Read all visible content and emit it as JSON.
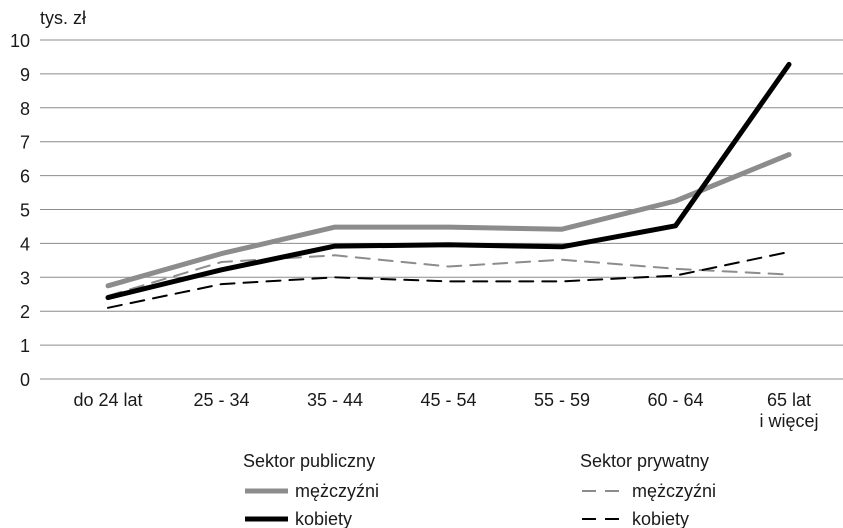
{
  "chart_data": {
    "type": "line",
    "title": "",
    "ylabel": "tys. zł",
    "xlabel": "",
    "ylim": [
      0,
      10
    ],
    "yticks": [
      0,
      1,
      2,
      3,
      4,
      5,
      6,
      7,
      8,
      9,
      10
    ],
    "grid": true,
    "categories": [
      "do 24 lat",
      "25 - 34",
      "35 - 44",
      "45 - 54",
      "55 - 59",
      "60 - 64",
      "65 lat i więcej"
    ],
    "category_lines": [
      [
        "do 24 lat"
      ],
      [
        "25 - 34"
      ],
      [
        "35 - 44"
      ],
      [
        "45 - 54"
      ],
      [
        "55 - 59"
      ],
      [
        "60 - 64"
      ],
      [
        "65 lat",
        "i więcej"
      ]
    ],
    "legend": {
      "placement": "bottom",
      "groups": [
        {
          "title": "Sektor publiczny",
          "entries": [
            "mężczyźni",
            "kobiety"
          ]
        },
        {
          "title": "Sektor prywatny",
          "entries": [
            "mężczyźni",
            "kobiety"
          ]
        }
      ]
    },
    "series": [
      {
        "group": "Sektor publiczny",
        "name": "mężczyźni",
        "color": "#8c8c8c",
        "style": "solid-thick",
        "values": [
          2.75,
          3.7,
          4.48,
          4.48,
          4.42,
          5.25,
          6.62
        ]
      },
      {
        "group": "Sektor publiczny",
        "name": "kobiety",
        "color": "#000000",
        "style": "solid-thick",
        "values": [
          2.4,
          3.22,
          3.92,
          3.96,
          3.9,
          4.52,
          9.28
        ]
      },
      {
        "group": "Sektor prywatny",
        "name": "mężczyźni",
        "color": "#8c8c8c",
        "style": "dashed",
        "values": [
          2.45,
          3.45,
          3.65,
          3.32,
          3.52,
          3.25,
          3.08
        ]
      },
      {
        "group": "Sektor prywatny",
        "name": "kobiety",
        "color": "#000000",
        "style": "dashed",
        "values": [
          2.1,
          2.8,
          3.0,
          2.88,
          2.88,
          3.05,
          3.75
        ]
      }
    ]
  }
}
